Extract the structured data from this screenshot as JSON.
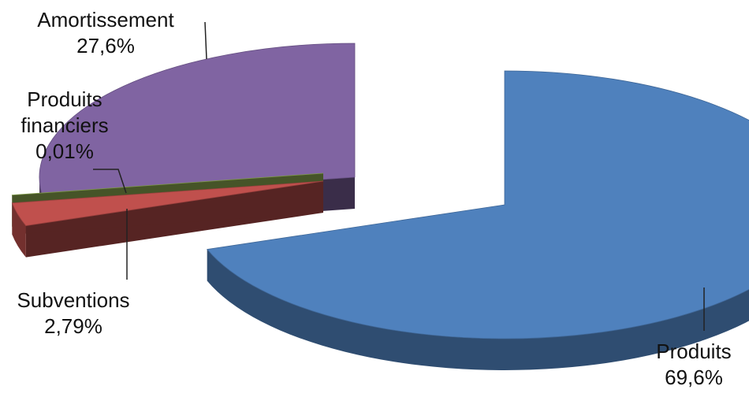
{
  "chart_data": {
    "type": "pie",
    "style": "exploded-3d",
    "title": "",
    "legend": "none",
    "slices": [
      {
        "name": "Produits",
        "value": 69.6,
        "value_label": "69,6%",
        "color": "#4f81bd"
      },
      {
        "name": "Subventions",
        "value": 2.79,
        "value_label": "2,79%",
        "color": "#c0504d"
      },
      {
        "name": "Produits financiers",
        "name_lines": [
          "Produits",
          "financiers"
        ],
        "value": 0.01,
        "value_label": "0,01%",
        "color": "#9bbb59"
      },
      {
        "name": "Amortissement",
        "value": 27.6,
        "value_label": "27,6%",
        "color": "#8064a2"
      }
    ]
  }
}
